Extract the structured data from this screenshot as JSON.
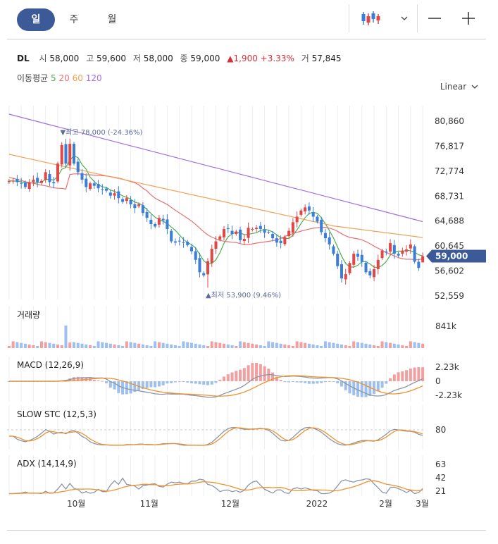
{
  "tabs": [
    {
      "label": "일",
      "active": true
    },
    {
      "label": "주",
      "active": false
    },
    {
      "label": "월",
      "active": false
    }
  ],
  "toolbar": {
    "chart_type_icon": "candlestick-icon",
    "dropdown_icon": "chevron-down-icon",
    "zoom_out": "—",
    "zoom_in": "+"
  },
  "info": {
    "symbol": "DL",
    "open_label": "시",
    "open": "58,000",
    "high_label": "고",
    "high": "59,600",
    "low_label": "저",
    "low": "58,000",
    "close_label": "종",
    "close": "59,000",
    "change": "▲1,900",
    "change_pct": "+3.33%",
    "volume_label": "거",
    "volume": "57,845"
  },
  "ma_legend": {
    "label": "이동평균",
    "periods": [
      "5",
      "20",
      "60",
      "120"
    ],
    "colors": [
      "#4caf50",
      "#e57373",
      "#f0a050",
      "#a070e0"
    ]
  },
  "scale_label": "Linear",
  "colors": {
    "up": "#e04848",
    "down": "#3b7dd8",
    "accent": "#3d5a98",
    "grid": "#eceef2"
  },
  "chart_data": {
    "type": "candlestick",
    "price_axis": {
      "ticks": [
        "80,860",
        "76,817",
        "72,774",
        "68,731",
        "64,688",
        "60,645",
        "56,602",
        "52,559"
      ],
      "min": 52559,
      "max": 80860
    },
    "current_price": "59,000",
    "annotations": {
      "high": "▼최고 78,000 (-24.36%)",
      "low": "▲최저 53,900 (9.46%)"
    },
    "x_axis": {
      "labels": [
        "10월",
        "11월",
        "12월",
        "2022",
        "2월",
        "3월"
      ]
    },
    "closes": [
      71200,
      71200,
      71000,
      70800,
      70200,
      71000,
      71400,
      71000,
      71200,
      72600,
      71000,
      70800,
      74000,
      77000,
      74000,
      77200,
      74000,
      72600,
      71400,
      70200,
      70800,
      70400,
      70000,
      69800,
      69600,
      68800,
      69200,
      68400,
      67800,
      68400,
      67400,
      66800,
      67400,
      66000,
      65200,
      64200,
      63800,
      65200,
      64800,
      63400,
      61400,
      61200,
      61400,
      61200,
      60800,
      59800,
      58400,
      56400,
      55900,
      58200,
      60200,
      61400,
      62200,
      63400,
      63400,
      62600,
      63000,
      61600,
      61800,
      63600,
      63400,
      63600,
      63400,
      62800,
      62900,
      61900,
      61200,
      61100,
      62100,
      63100,
      64500,
      65400,
      66400,
      66900,
      66400,
      65400,
      64600,
      62900,
      61900,
      60900,
      59400,
      57400,
      55400,
      56100,
      57900,
      59400,
      58900,
      58100,
      56400,
      55900,
      56900,
      58400,
      59900,
      59600,
      61100,
      59400,
      59100,
      59900,
      60100,
      60900,
      58100,
      57100,
      59000
    ],
    "volume": {
      "ticks": [
        "841k"
      ],
      "spike_label": "841k"
    },
    "macd": {
      "title": "MACD (12,26,9)",
      "ticks": [
        "2.23k",
        "0",
        "-2.23k"
      ]
    },
    "slow_stc": {
      "title": "SLOW STC (12,5,3)",
      "ticks": [
        "80"
      ]
    },
    "adx": {
      "title": "ADX (14,14,9)",
      "ticks": [
        "63",
        "42",
        "21"
      ]
    },
    "volume_title": "거래량"
  }
}
